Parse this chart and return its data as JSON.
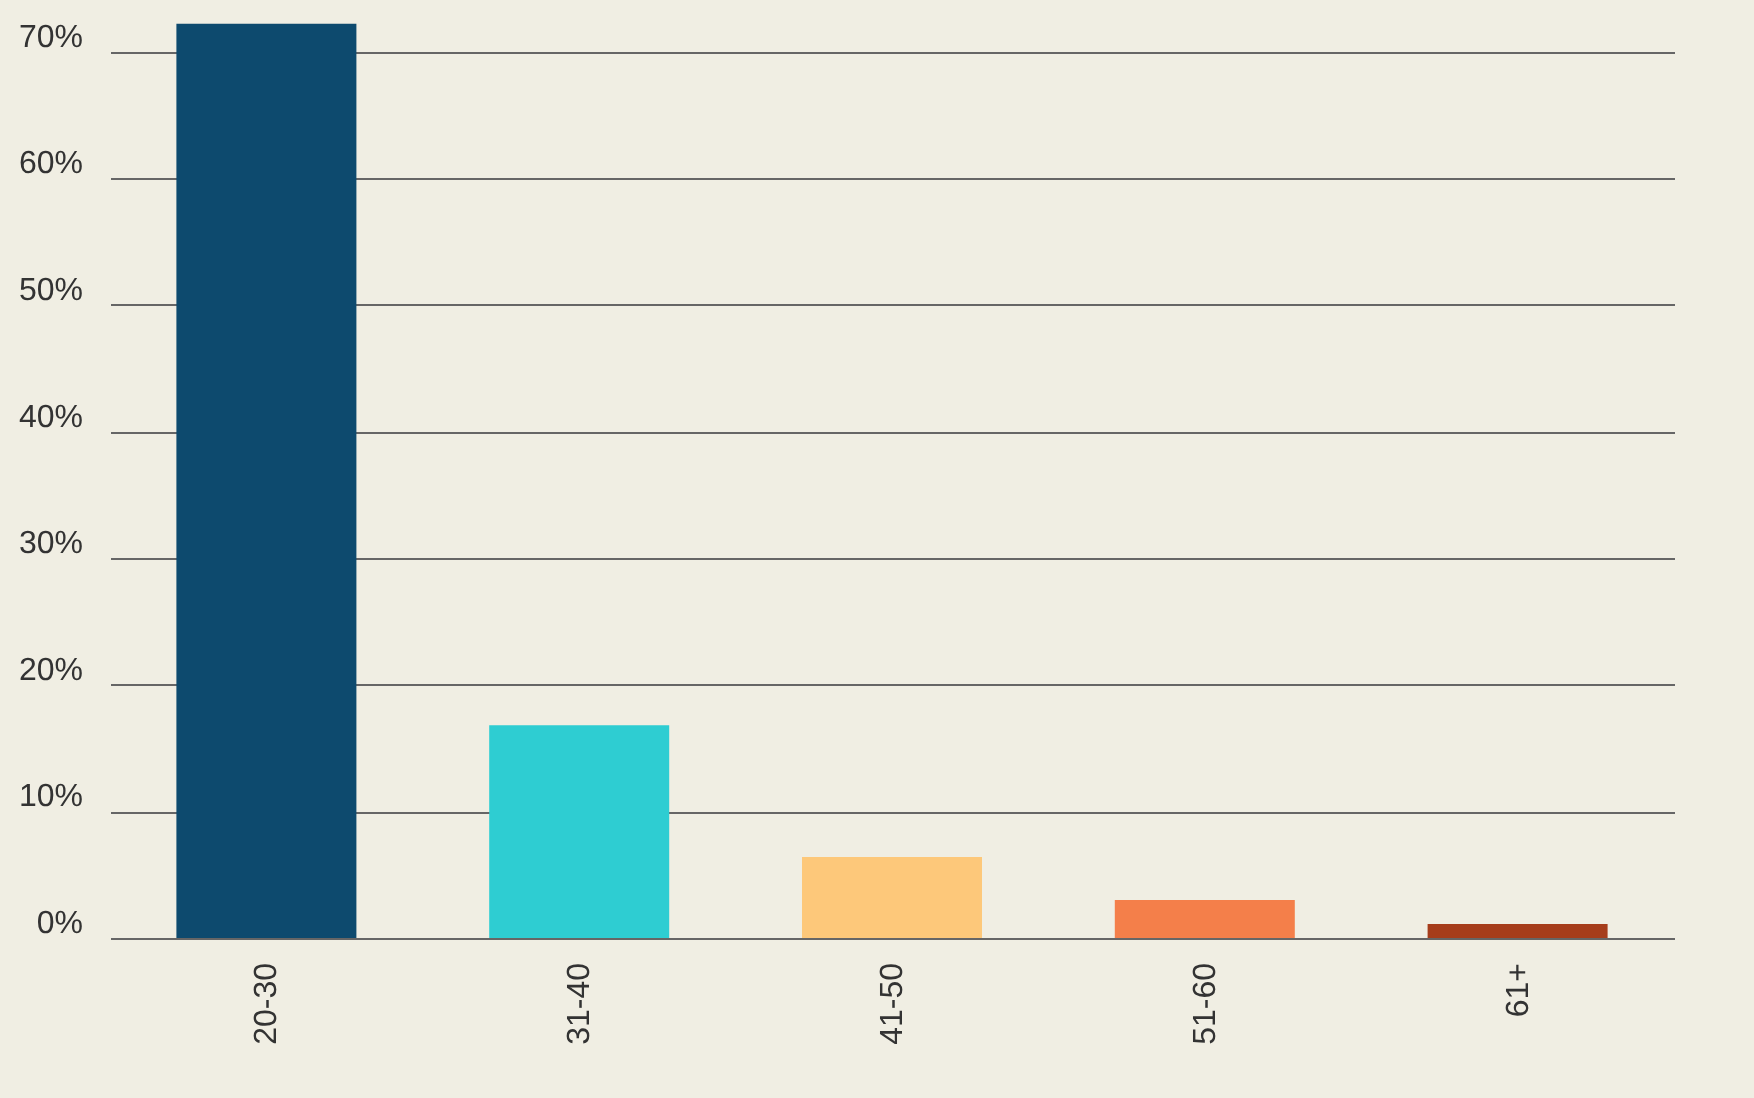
{
  "chart_data": {
    "type": "bar",
    "categories": [
      "20-30",
      "31-40",
      "41-50",
      "51-60",
      "61+"
    ],
    "values": [
      72.2,
      16.8,
      6.4,
      3.0,
      1.1
    ],
    "colors": [
      "#0d4a6e",
      "#2ecdd2",
      "#fdc87a",
      "#f47f4a",
      "#a63d1b"
    ],
    "ylim": [
      0,
      72.5
    ],
    "yticks": [
      {
        "value": 0,
        "label": "0%"
      },
      {
        "value": 10,
        "label": "10%"
      },
      {
        "value": 20,
        "label": "20%"
      },
      {
        "value": 30,
        "label": "30%"
      },
      {
        "value": 40,
        "label": "40%"
      },
      {
        "value": 50,
        "label": "50%"
      },
      {
        "value": 60,
        "label": "60%"
      },
      {
        "value": 70,
        "label": "70%"
      }
    ],
    "grid": "y"
  }
}
